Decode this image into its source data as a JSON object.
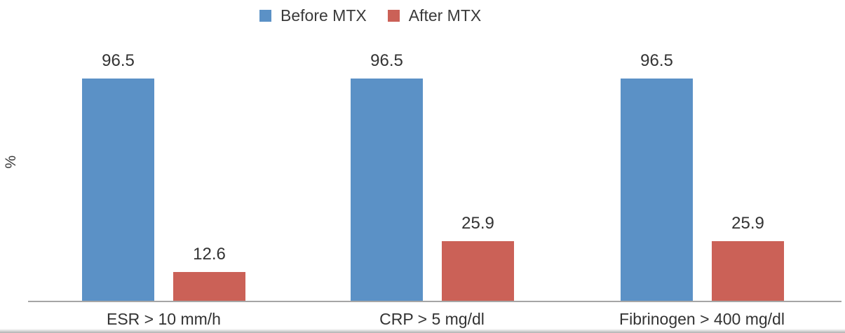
{
  "chart_data": {
    "type": "bar",
    "categories": [
      "ESR > 10 mm/h",
      "CRP > 5 mg/dl",
      "Fibrinogen > 400 mg/dl"
    ],
    "series": [
      {
        "name": "Before MTX",
        "color": "#5B91C6",
        "values": [
          96.5,
          96.5,
          96.5
        ]
      },
      {
        "name": "After MTX",
        "color": "#CB6157",
        "values": [
          12.6,
          25.9,
          25.9
        ]
      }
    ],
    "title": "",
    "xlabel": "",
    "ylabel": "%",
    "ylim": [
      0,
      100
    ],
    "grid": false,
    "legend_position": "top",
    "value_labels_shown": true,
    "axis_line_color": "#A6A6A6",
    "text_color": "#3A3A3A"
  }
}
